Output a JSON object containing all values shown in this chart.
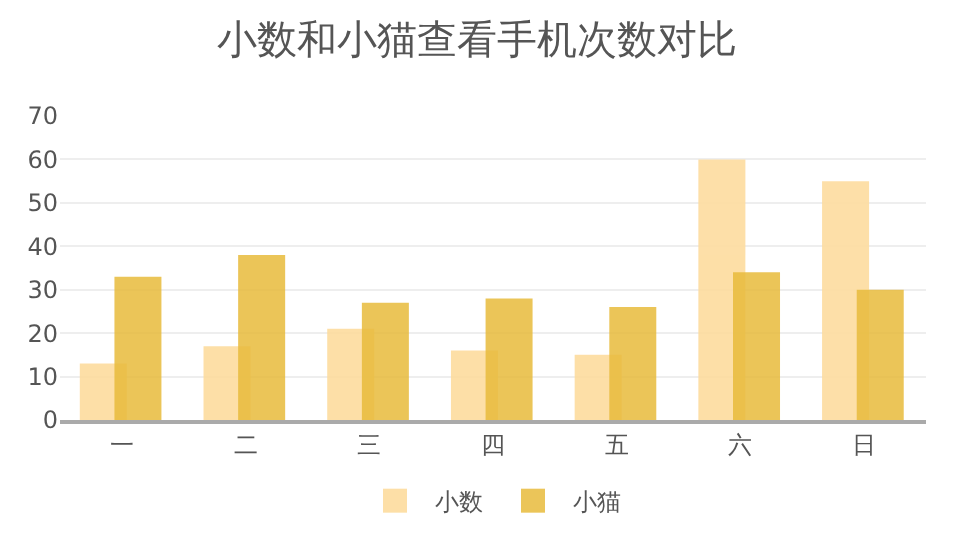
{
  "chart_data": {
    "type": "bar",
    "title": "小数和小猫查看手机次数对比",
    "categories": [
      "一",
      "二",
      "三",
      "四",
      "五",
      "六",
      "日"
    ],
    "series": [
      {
        "name": "小数",
        "color": "#fddc9e",
        "values": [
          13,
          17,
          21,
          16,
          15,
          60,
          55
        ]
      },
      {
        "name": "小猫",
        "color": "#e8bb3c",
        "values": [
          33,
          38,
          27,
          28,
          26,
          34,
          30
        ]
      }
    ],
    "ylim": [
      0,
      70
    ],
    "yticks": [
      0,
      10,
      20,
      30,
      40,
      50,
      60,
      70
    ],
    "grid": "y",
    "legend": "bottom"
  }
}
